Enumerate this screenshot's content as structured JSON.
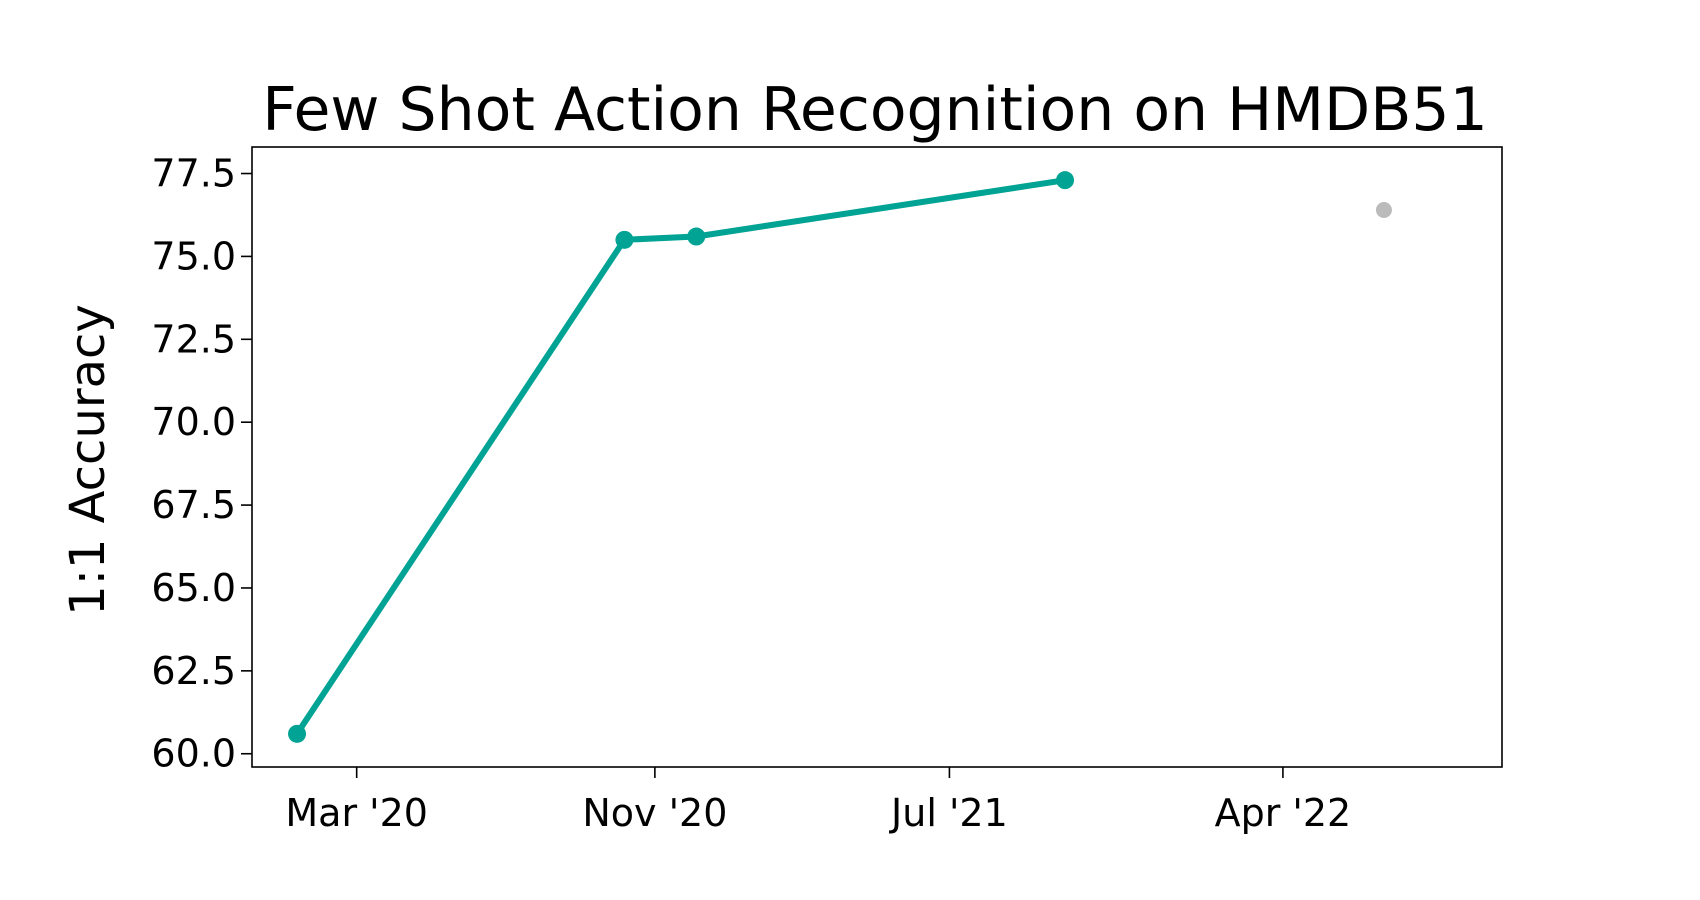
{
  "chart_data": {
    "type": "line",
    "title": "Few Shot Action Recognition on HMDB51",
    "xlabel": "",
    "ylabel": "1:1 Accuracy",
    "x_ticks": [
      {
        "date": "2020-03-01",
        "label": "Mar '20"
      },
      {
        "date": "2020-11-01",
        "label": "Nov '20"
      },
      {
        "date": "2021-07-01",
        "label": "Jul '21"
      },
      {
        "date": "2022-04-01",
        "label": "Apr '22"
      }
    ],
    "xlim": [
      "2019-12-06",
      "2022-09-28"
    ],
    "ylim": [
      59.6,
      78.3
    ],
    "y_ticks": [
      60.0,
      62.5,
      65.0,
      67.5,
      70.0,
      72.5,
      75.0,
      77.5
    ],
    "y_tick_labels": [
      "60.0",
      "62.5",
      "65.0",
      "67.5",
      "70.0",
      "72.5",
      "75.0",
      "77.5"
    ],
    "grid": false,
    "series": [
      {
        "color": "#00a394",
        "points": [
          {
            "x": "2020-01-12",
            "y": 60.6
          },
          {
            "x": "2020-10-07",
            "y": 75.5
          },
          {
            "x": "2020-12-05",
            "y": 75.6
          },
          {
            "x": "2021-10-04",
            "y": 77.3
          }
        ]
      },
      {
        "color": "#bbbbbb",
        "points": [
          {
            "x": "2022-06-23",
            "y": 76.4
          }
        ]
      }
    ]
  }
}
